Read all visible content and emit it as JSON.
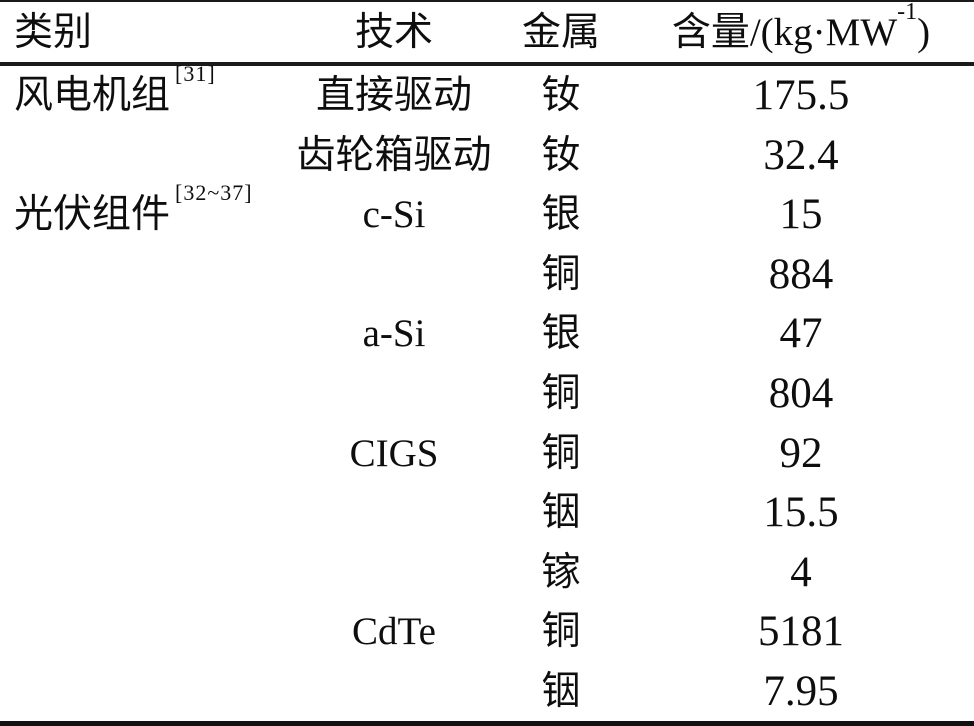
{
  "table": {
    "columns": [
      "类别",
      "技术",
      "金属"
    ],
    "content_header": {
      "prefix": "含量/(kg·MW",
      "sup": "-1",
      "suffix": ")"
    },
    "rows": [
      {
        "category": "风电机组",
        "ref": "[31]",
        "tech": "直接驱动",
        "metal": "钕",
        "value": "175.5"
      },
      {
        "category": "",
        "ref": "",
        "tech": "齿轮箱驱动",
        "metal": "钕",
        "value": "32.4"
      },
      {
        "category": "光伏组件",
        "ref": "[32~37]",
        "tech": "c-Si",
        "metal": "银",
        "value": "15"
      },
      {
        "category": "",
        "ref": "",
        "tech": "",
        "metal": "铜",
        "value": "884"
      },
      {
        "category": "",
        "ref": "",
        "tech": "a-Si",
        "metal": "银",
        "value": "47"
      },
      {
        "category": "",
        "ref": "",
        "tech": "",
        "metal": "铜",
        "value": "804"
      },
      {
        "category": "",
        "ref": "",
        "tech": "CIGS",
        "metal": "铜",
        "value": "92"
      },
      {
        "category": "",
        "ref": "",
        "tech": "",
        "metal": "铟",
        "value": "15.5"
      },
      {
        "category": "",
        "ref": "",
        "tech": "",
        "metal": "镓",
        "value": "4"
      },
      {
        "category": "",
        "ref": "",
        "tech": "CdTe",
        "metal": "铜",
        "value": "5181"
      },
      {
        "category": "",
        "ref": "",
        "tech": "",
        "metal": "铟",
        "value": "7.95"
      }
    ]
  },
  "colors": {
    "text": "#0e0e0e",
    "border": "#1a1a1a",
    "background": "#ffffff"
  }
}
